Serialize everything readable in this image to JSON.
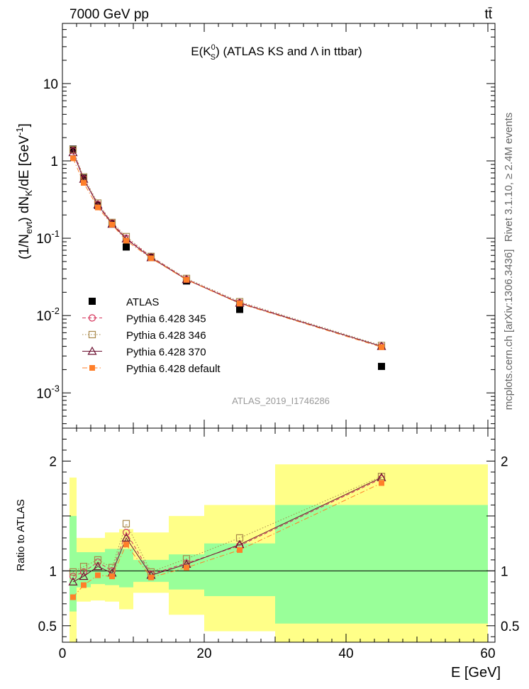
{
  "header": {
    "left": "7000 GeV pp",
    "right": "tt̄"
  },
  "side_labels": {
    "rivet": "Rivet 3.1.10, ≥ 2.4M events",
    "mcplots": "mcplots.cern.ch [arXiv:1306.3436]"
  },
  "chart_data": [
    {
      "type": "scatter",
      "title": "E(K⁰S) (ATLAS KS and Λ in ttbar)",
      "title_parts": {
        "main": "E(K",
        "sup": "0",
        "sub": "S",
        "rest": ") (ATLAS KS and Λ in ttbar)"
      },
      "analysis_tag": "ATLAS_2019_I1746286",
      "ylabel": "(1/Nevt) dNK/dE [GeV⁻¹]",
      "ylabel_parts": {
        "a": "(1/N",
        "sub1": "evt",
        "b": ") dN",
        "sub2": "K",
        "c": "/dE [GeV",
        "sup": "-1",
        "d": "]"
      },
      "xlabel": "",
      "xlim": [
        0,
        61
      ],
      "ylim": [
        0.00035,
        60
      ],
      "yscale": "log",
      "yticks": [
        {
          "value": 0.001,
          "base": "10",
          "exp": "-3"
        },
        {
          "value": 0.01,
          "base": "10",
          "exp": "-2"
        },
        {
          "value": 0.1,
          "base": "10",
          "exp": "-1"
        },
        {
          "value": 1,
          "base": "1",
          "exp": ""
        },
        {
          "value": 10,
          "base": "10",
          "exp": ""
        }
      ],
      "legend_position": "bottom-left",
      "x": [
        1.5,
        3,
        5,
        7,
        9,
        12.5,
        17.5,
        25,
        45
      ],
      "series": [
        {
          "name": "ATLAS",
          "color": "#000000",
          "marker": "square-filled",
          "line": "none",
          "values": [
            1.42,
            0.6,
            0.265,
            0.155,
            0.077,
            0.058,
            0.028,
            0.012,
            0.0022
          ]
        },
        {
          "name": "Pythia 6.428 345",
          "color": "#d6335a",
          "marker": "circle-open",
          "line": "dashed",
          "values": [
            1.35,
            0.59,
            0.275,
            0.158,
            0.1,
            0.058,
            0.0295,
            0.0147,
            0.004
          ]
        },
        {
          "name": "Pythia 6.428 346",
          "color": "#a8884a",
          "marker": "square-open",
          "line": "dotted",
          "values": [
            1.4,
            0.62,
            0.285,
            0.16,
            0.105,
            0.058,
            0.0302,
            0.0151,
            0.0041
          ]
        },
        {
          "name": "Pythia 6.428 370",
          "color": "#6b1030",
          "marker": "triangle-open",
          "line": "solid",
          "values": [
            1.28,
            0.58,
            0.27,
            0.152,
            0.098,
            0.056,
            0.0292,
            0.0145,
            0.004
          ]
        },
        {
          "name": "Pythia 6.428 default",
          "color": "#ff7f2a",
          "marker": "square-filled-small",
          "line": "dashdot",
          "values": [
            1.08,
            0.52,
            0.25,
            0.15,
            0.093,
            0.055,
            0.029,
            0.0143,
            0.0039
          ]
        }
      ]
    },
    {
      "type": "line",
      "ylabel": "Ratio to ATLAS",
      "xlabel": "E [GeV]",
      "xlim": [
        0,
        61
      ],
      "ylim": [
        0.35,
        2.3
      ],
      "xticks": [
        0,
        20,
        40,
        60
      ],
      "yticks": [
        0.5,
        1,
        2
      ],
      "bands": {
        "bins": [
          [
            1,
            2
          ],
          [
            2,
            4
          ],
          [
            4,
            6
          ],
          [
            6,
            8
          ],
          [
            8,
            10
          ],
          [
            10,
            15
          ],
          [
            15,
            20
          ],
          [
            20,
            30
          ],
          [
            30,
            60
          ]
        ],
        "green": [
          [
            0.63,
            1.5
          ],
          [
            0.85,
            1.17
          ],
          [
            0.88,
            1.17
          ],
          [
            0.87,
            1.2
          ],
          [
            0.85,
            1.2
          ],
          [
            0.9,
            1.1
          ],
          [
            0.83,
            1.15
          ],
          [
            0.77,
            1.25
          ],
          [
            0.52,
            1.6
          ]
        ],
        "yellow": [
          [
            0.35,
            1.85
          ],
          [
            0.72,
            1.3
          ],
          [
            0.73,
            1.3
          ],
          [
            0.72,
            1.35
          ],
          [
            0.65,
            1.38
          ],
          [
            0.8,
            1.35
          ],
          [
            0.6,
            1.5
          ],
          [
            0.45,
            1.6
          ],
          [
            0.35,
            1.97
          ]
        ],
        "green_color": "#99ff99",
        "yellow_color": "#ffff88"
      },
      "x": [
        1.5,
        3,
        5,
        7,
        9,
        12.5,
        17.5,
        25,
        45
      ],
      "series": [
        {
          "name": "Pythia 6.428 345",
          "values": [
            0.95,
            0.99,
            1.08,
            1.0,
            1.35,
            0.97,
            1.07,
            1.23,
            1.84
          ]
        },
        {
          "name": "Pythia 6.428 346",
          "values": [
            0.99,
            1.04,
            1.1,
            1.03,
            1.43,
            0.99,
            1.11,
            1.3,
            1.86
          ]
        },
        {
          "name": "Pythia 6.428 370",
          "values": [
            0.9,
            0.95,
            1.04,
            0.98,
            1.3,
            0.96,
            1.06,
            1.24,
            1.85
          ]
        },
        {
          "name": "Pythia 6.428 default",
          "values": [
            0.76,
            0.87,
            0.96,
            0.95,
            1.24,
            0.94,
            1.03,
            1.19,
            1.8
          ]
        }
      ]
    }
  ]
}
